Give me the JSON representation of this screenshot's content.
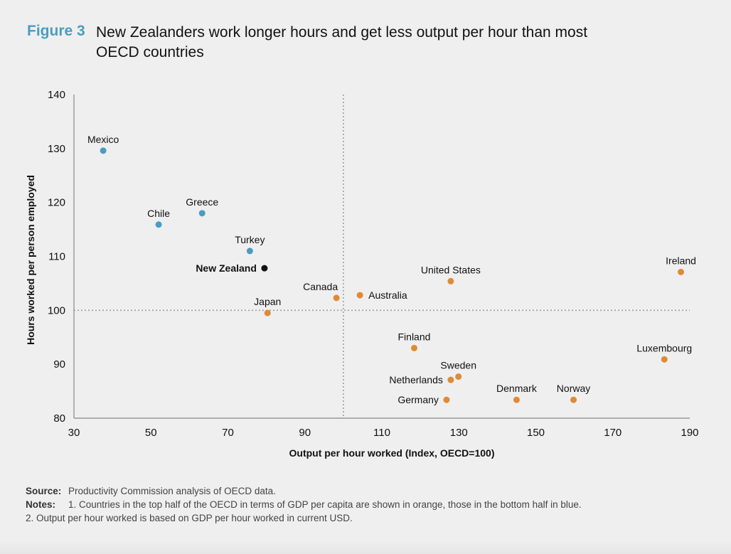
{
  "figure": {
    "label": "Figure 3",
    "title": "New Zealanders work longer hours and get less output per hour than most OECD countries"
  },
  "footer": {
    "source_key": "Source:",
    "source_text": "Productivity Commission analysis of OECD data.",
    "notes_key": "Notes:",
    "note_1": "1. Countries in the top half of the OECD in terms of GDP per capita are shown in orange, those in the bottom half in blue.",
    "note_2": "2. Output per hour worked is based on GDP per hour worked in current USD."
  },
  "colors": {
    "orange": "#e08a35",
    "blue": "#4a9dbf",
    "black": "#111111",
    "accent": "#4a9dbf"
  },
  "chart_data": {
    "type": "scatter",
    "title": "New Zealanders work longer hours and get less output per hour than most OECD countries",
    "xlabel": "Output per hour worked (Index, OECD=100)",
    "ylabel": "Hours worked per person employed",
    "xlim": [
      30,
      190
    ],
    "ylim": [
      80,
      140
    ],
    "xticks": [
      30,
      50,
      70,
      90,
      110,
      130,
      150,
      170,
      190
    ],
    "yticks": [
      80,
      90,
      100,
      110,
      120,
      130,
      140
    ],
    "grid": false,
    "reference_lines": {
      "x": 100,
      "y": 100,
      "style": "dotted"
    },
    "legend": "none",
    "series": [
      {
        "name": "Bottom half of OECD (GDP per capita)",
        "color": "blue",
        "points": [
          {
            "label": "Mexico",
            "x": 37.6,
            "y": 129.6
          },
          {
            "label": "Chile",
            "x": 52.0,
            "y": 115.9
          },
          {
            "label": "Greece",
            "x": 63.3,
            "y": 118.0
          },
          {
            "label": "Turkey",
            "x": 75.7,
            "y": 111.0
          }
        ]
      },
      {
        "name": "New Zealand",
        "color": "black",
        "points": [
          {
            "label": "New Zealand",
            "x": 79.5,
            "y": 107.8
          }
        ]
      },
      {
        "name": "Top half of OECD (GDP per capita)",
        "color": "orange",
        "points": [
          {
            "label": "Japan",
            "x": 80.3,
            "y": 99.5
          },
          {
            "label": "Canada",
            "x": 98.2,
            "y": 102.3
          },
          {
            "label": "Australia",
            "x": 104.3,
            "y": 102.8
          },
          {
            "label": "United States",
            "x": 127.9,
            "y": 105.4
          },
          {
            "label": "Ireland",
            "x": 187.7,
            "y": 107.1
          },
          {
            "label": "Finland",
            "x": 118.4,
            "y": 93.0
          },
          {
            "label": "Luxembourg",
            "x": 183.4,
            "y": 90.9
          },
          {
            "label": "Sweden",
            "x": 129.9,
            "y": 87.7
          },
          {
            "label": "Netherlands",
            "x": 127.9,
            "y": 87.1
          },
          {
            "label": "Germany",
            "x": 126.8,
            "y": 83.4
          },
          {
            "label": "Denmark",
            "x": 145.0,
            "y": 83.4
          },
          {
            "label": "Norway",
            "x": 159.8,
            "y": 83.4
          }
        ]
      }
    ]
  }
}
